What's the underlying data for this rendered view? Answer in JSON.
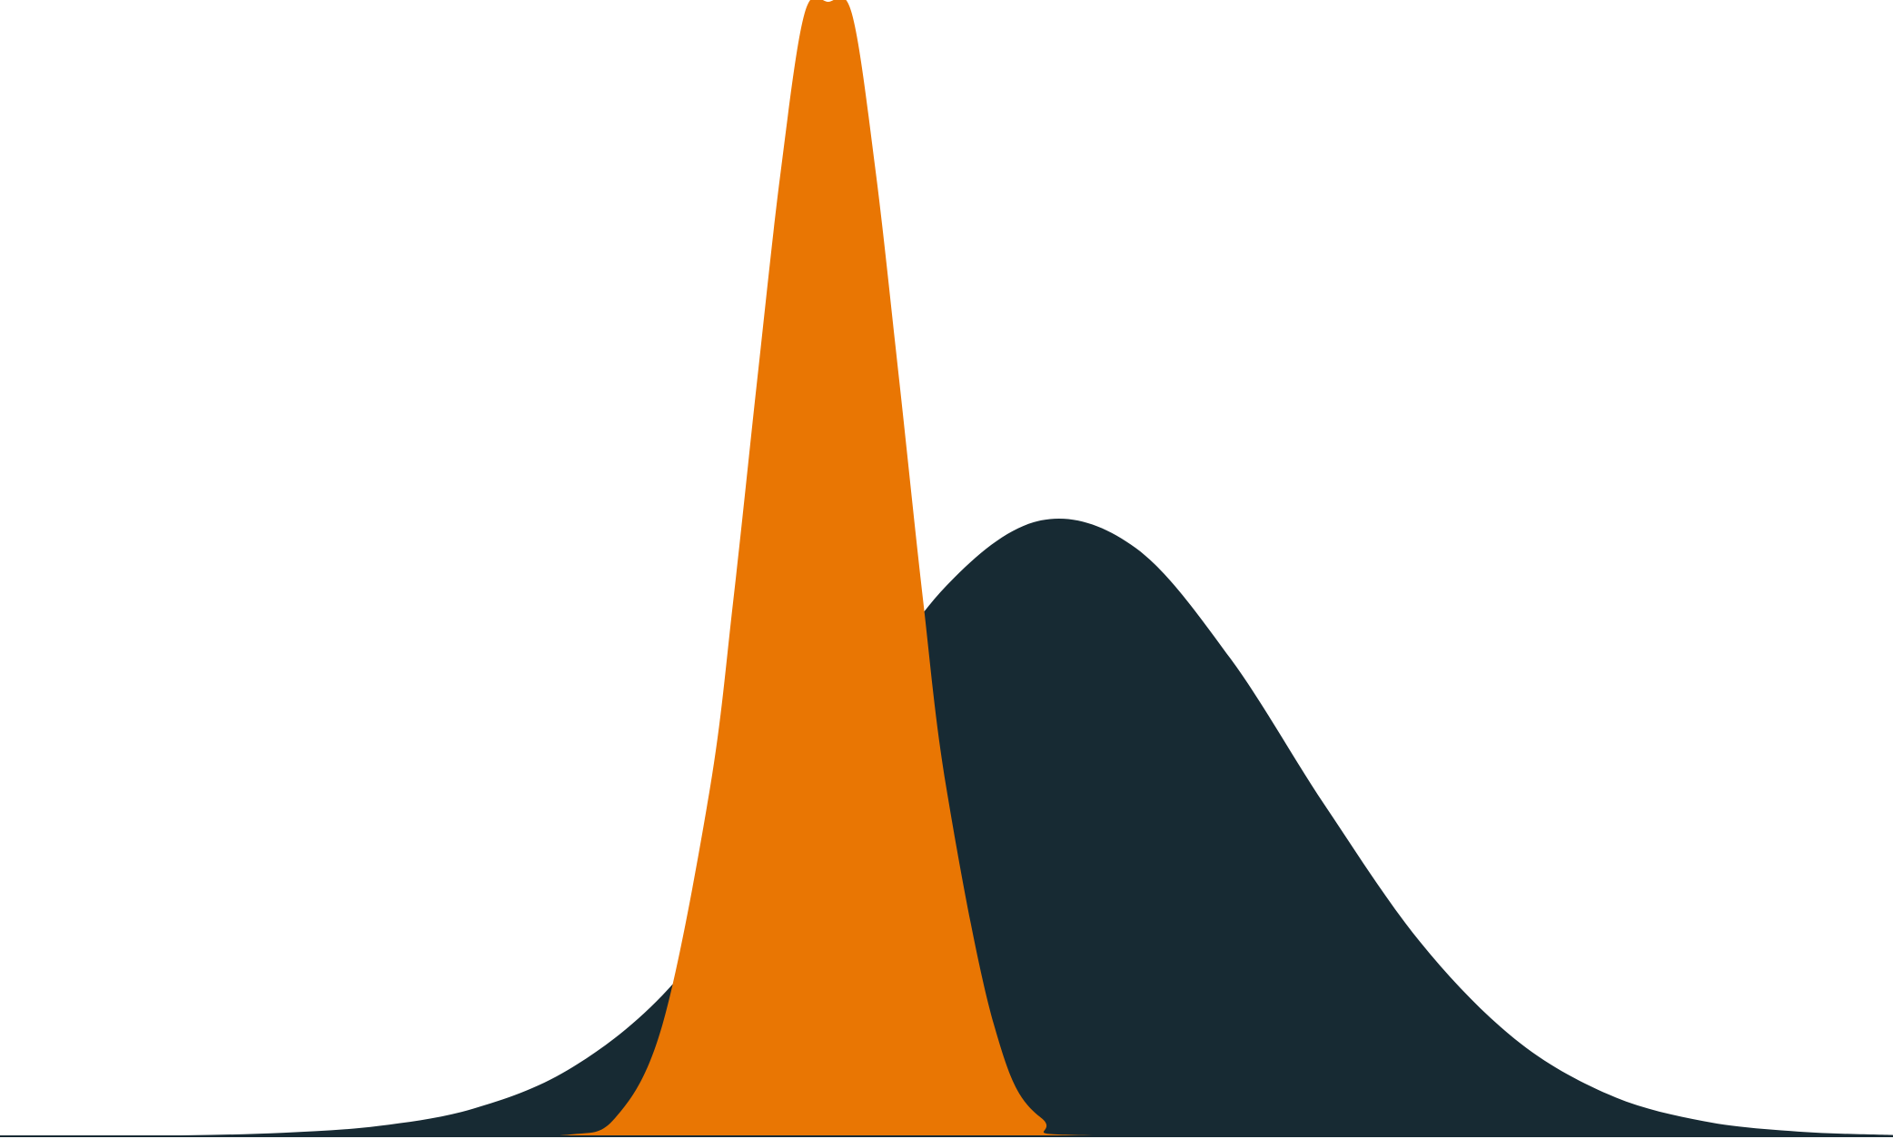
{
  "chart_data": {
    "type": "area",
    "title": "",
    "xlabel": "",
    "ylabel": "",
    "xlim": [
      -4,
      4
    ],
    "ylim": [
      0,
      1
    ],
    "grid": false,
    "legend": "none",
    "series": [
      {
        "color": "#172a33",
        "x": [
          -4.0,
          -3.6,
          -3.2,
          -2.8,
          -2.4,
          -2.0,
          -1.6,
          -1.2,
          -0.8,
          -0.4,
          0.0,
          0.4,
          0.8,
          1.2,
          1.6,
          2.0,
          2.4,
          2.8,
          3.2,
          3.6,
          4.0
        ],
        "y": [
          0.0001,
          0.0003,
          0.0009,
          0.0031,
          0.0091,
          0.0243,
          0.0584,
          0.1244,
          0.2317,
          0.3692,
          0.4854,
          0.5429,
          0.5185,
          0.4211,
          0.2914,
          0.1717,
          0.0861,
          0.0367,
          0.0133,
          0.0041,
          0.0011
        ]
      },
      {
        "color": "#e97603",
        "x": [
          -4.0,
          -2.0,
          -1.6,
          -1.4,
          -1.2,
          -1.0,
          -0.9,
          -0.8,
          -0.7,
          -0.6,
          -0.5,
          -0.4,
          -0.3,
          -0.2,
          -0.1,
          0.0,
          0.2,
          0.4,
          0.8,
          4.0
        ],
        "y": [
          0.0,
          0.0,
          0.0013,
          0.0162,
          0.0987,
          0.3062,
          0.4743,
          0.6667,
          0.8514,
          0.9897,
          1.0,
          0.9897,
          0.8514,
          0.6667,
          0.4743,
          0.3062,
          0.0987,
          0.0162,
          0.0,
          0.0
        ]
      }
    ]
  }
}
